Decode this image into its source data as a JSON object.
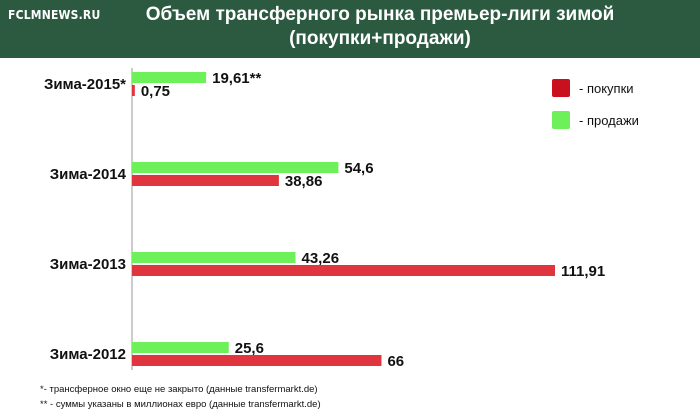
{
  "header": {
    "brand": "FCLMNEWS.RU",
    "title_line1": "Объем трансферного рынка премьер-лиги зимой",
    "title_line2": "(покупки+продажи)"
  },
  "chart_data": {
    "type": "bar",
    "orientation": "horizontal",
    "title": "Объем трансферного рынка премьер-лиги зимой (покупки+продажи)",
    "categories": [
      "Зима-2015*",
      "Зима-2014",
      "Зима-2013",
      "Зима-2012"
    ],
    "series": [
      {
        "name": "- продажи",
        "color": "#6ef05a",
        "values": [
          19.61,
          54.6,
          43.26,
          25.6
        ],
        "labels": [
          "19,61**",
          "54,6",
          "43,26",
          "25,6"
        ]
      },
      {
        "name": "- покупки",
        "color": "#e0353f",
        "values": [
          0.75,
          38.86,
          111.91,
          66
        ],
        "labels": [
          "0,75",
          "38,86",
          "111,91",
          "66"
        ]
      }
    ],
    "legend_position": "top-right",
    "grid": false,
    "xlim": [
      0,
      111.91
    ]
  },
  "legend": {
    "items": [
      {
        "label": "- покупки",
        "color": "#c8101e"
      },
      {
        "label": "- продажи",
        "color": "#6ef05a"
      }
    ]
  },
  "footnotes": [
    "*-  трансферное окно еще не закрыто (данные transfermarkt.de)",
    "** - суммы указаны в миллионах евро (данные transfermarkt.de)"
  ]
}
